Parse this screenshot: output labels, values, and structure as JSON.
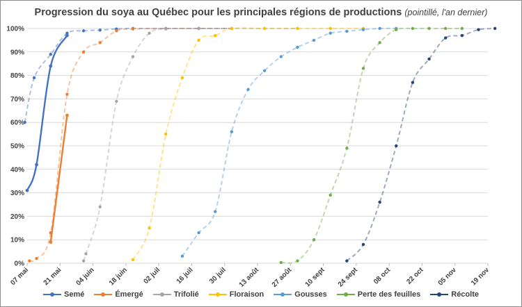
{
  "chart_data": {
    "type": "line",
    "title": "Progression du soya au Québec pour les principales régions de productions",
    "subtitle": "(pointillé, l'an dernier)",
    "x_tick_labels": [
      "07 mai",
      "21 mai",
      "04 juin",
      "18 juin",
      "02 juil",
      "16 juil",
      "30 juil",
      "13 août",
      "27 août",
      "10 sept",
      "24 sept",
      "08 oct",
      "22 oct",
      "05 nov",
      "19 nov"
    ],
    "x_tick_days": [
      0,
      14,
      28,
      42,
      56,
      70,
      84,
      98,
      112,
      126,
      140,
      154,
      168,
      182,
      196
    ],
    "y_tick_labels": [
      "0%",
      "10%",
      "20%",
      "30%",
      "40%",
      "50%",
      "60%",
      "70%",
      "80%",
      "90%",
      "100%"
    ],
    "ylim": [
      0,
      100
    ],
    "xlim_days": [
      0,
      196
    ],
    "series": [
      {
        "name": "Semé",
        "color": "#4472c4",
        "current": [
          [
            0,
            31
          ],
          [
            4,
            42
          ],
          [
            10,
            84
          ],
          [
            17,
            97
          ]
        ],
        "previous": [
          [
            -1,
            60
          ],
          [
            3,
            79
          ],
          [
            10,
            89
          ],
          [
            17,
            98
          ],
          [
            24,
            99
          ],
          [
            31,
            99.3
          ],
          [
            38,
            99.8
          ],
          [
            45,
            100
          ],
          [
            59,
            100
          ],
          [
            73,
            100
          ],
          [
            87,
            100
          ]
        ]
      },
      {
        "name": "Émergé",
        "color": "#ed7d31",
        "current": [
          [
            10,
            9
          ],
          [
            17,
            63
          ]
        ],
        "previous": [
          [
            1,
            1
          ],
          [
            4,
            2
          ],
          [
            10,
            13
          ],
          [
            17,
            72
          ],
          [
            24,
            90
          ],
          [
            31,
            94
          ],
          [
            38,
            99
          ],
          [
            45,
            99.8
          ],
          [
            59,
            100
          ],
          [
            73,
            100
          ],
          [
            87,
            100
          ]
        ]
      },
      {
        "name": "Trifolié",
        "color": "#a5a5a5",
        "current": [],
        "previous": [
          [
            24,
            1
          ],
          [
            25,
            4
          ],
          [
            31,
            24
          ],
          [
            38,
            69
          ],
          [
            45,
            88
          ],
          [
            52,
            98
          ],
          [
            59,
            99.8
          ],
          [
            73,
            100
          ],
          [
            87,
            100
          ],
          [
            101,
            100
          ],
          [
            115,
            100
          ]
        ]
      },
      {
        "name": "Floraison",
        "color": "#ffc000",
        "current": [],
        "previous": [
          [
            45,
            1.5
          ],
          [
            52,
            15
          ],
          [
            59,
            55
          ],
          [
            66,
            79
          ],
          [
            73,
            95
          ],
          [
            80,
            97
          ],
          [
            87,
            100
          ],
          [
            101,
            100
          ],
          [
            115,
            100
          ],
          [
            129,
            100
          ],
          [
            143,
            100
          ]
        ]
      },
      {
        "name": "Gousses",
        "color": "#5b9bd5",
        "current": [],
        "previous": [
          [
            66,
            3
          ],
          [
            73,
            13
          ],
          [
            80,
            22
          ],
          [
            87,
            56
          ],
          [
            94,
            74
          ],
          [
            101,
            82
          ],
          [
            108,
            88
          ],
          [
            115,
            92
          ],
          [
            122,
            95
          ],
          [
            129,
            98
          ],
          [
            136,
            98.8
          ],
          [
            143,
            99.5
          ],
          [
            150,
            100
          ],
          [
            157,
            100
          ]
        ]
      },
      {
        "name": "Perte des feuilles",
        "color": "#70ad47",
        "current": [],
        "previous": [
          [
            108,
            0.3
          ],
          [
            115,
            1
          ],
          [
            122,
            10
          ],
          [
            129,
            29
          ],
          [
            136,
            49
          ],
          [
            143,
            83
          ],
          [
            150,
            94
          ],
          [
            157,
            99.5
          ],
          [
            164,
            100
          ],
          [
            171,
            100
          ],
          [
            178,
            100
          ],
          [
            185,
            100
          ]
        ]
      },
      {
        "name": "Récolte",
        "color": "#264478",
        "current": [],
        "previous": [
          [
            136,
            1
          ],
          [
            143,
            8
          ],
          [
            150,
            26
          ],
          [
            157,
            50
          ],
          [
            164,
            77
          ],
          [
            171,
            87
          ],
          [
            178,
            96
          ],
          [
            185,
            97
          ],
          [
            192,
            99.5
          ],
          [
            199,
            100
          ]
        ]
      }
    ]
  }
}
